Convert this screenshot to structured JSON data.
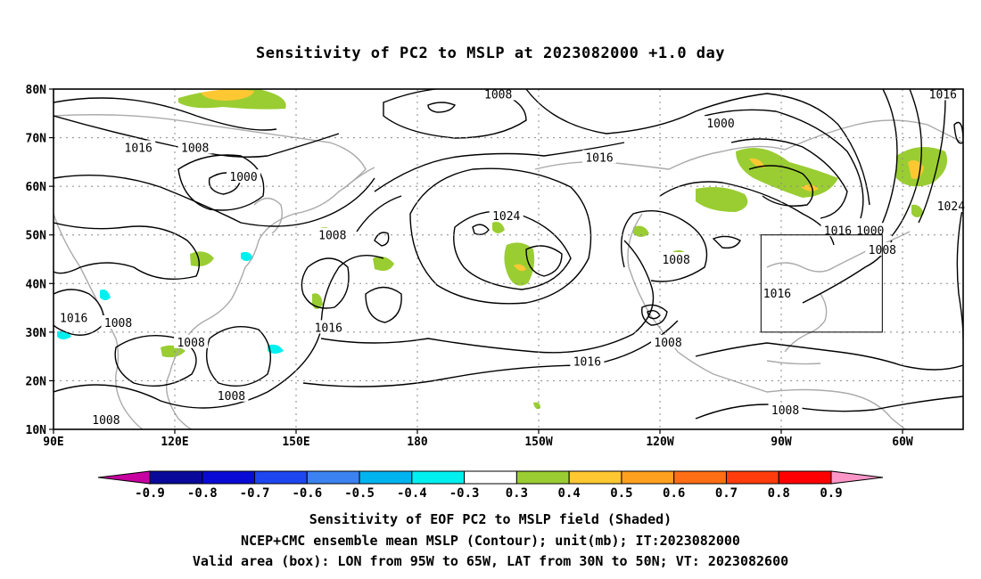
{
  "title": "Sensitivity of PC2 to MSLP at 2023082000 +1.0 day",
  "map": {
    "lat_ticks": [
      {
        "lat": 80,
        "label": "80N"
      },
      {
        "lat": 70,
        "label": "70N"
      },
      {
        "lat": 60,
        "label": "60N"
      },
      {
        "lat": 50,
        "label": "50N"
      },
      {
        "lat": 40,
        "label": "40N"
      },
      {
        "lat": 30,
        "label": "30N"
      },
      {
        "lat": 20,
        "label": "20N"
      },
      {
        "lat": 10,
        "label": "10N"
      }
    ],
    "lon_ticks": [
      {
        "lon": 90,
        "label": "90E"
      },
      {
        "lon": 120,
        "label": "120E"
      },
      {
        "lon": 150,
        "label": "150E"
      },
      {
        "lon": 180,
        "label": "180"
      },
      {
        "lon": 210,
        "label": "150W"
      },
      {
        "lon": 240,
        "label": "120W"
      },
      {
        "lon": 270,
        "label": "90W"
      },
      {
        "lon": 300,
        "label": "60W"
      }
    ],
    "lon_range": [
      90,
      315
    ],
    "lat_range": [
      10,
      80
    ],
    "valid_box": {
      "lon": [
        265,
        295
      ],
      "lat": [
        30,
        50
      ]
    },
    "contour_labels": [
      {
        "text": "1008",
        "lon": 200,
        "lat": 79
      },
      {
        "text": "1016",
        "lon": 310,
        "lat": 79
      },
      {
        "text": "1000",
        "lon": 255,
        "lat": 73
      },
      {
        "text": "1016",
        "lon": 111,
        "lat": 68
      },
      {
        "text": "1008",
        "lon": 125,
        "lat": 68
      },
      {
        "text": "1016",
        "lon": 225,
        "lat": 66
      },
      {
        "text": "1000",
        "lon": 137,
        "lat": 62
      },
      {
        "text": "1024",
        "lon": 202,
        "lat": 54
      },
      {
        "text": "1024",
        "lon": 312,
        "lat": 56
      },
      {
        "text": "1008",
        "lon": 159,
        "lat": 50
      },
      {
        "text": "1016",
        "lon": 284,
        "lat": 51
      },
      {
        "text": "1000",
        "lon": 292,
        "lat": 51
      },
      {
        "text": "1008",
        "lon": 295,
        "lat": 47
      },
      {
        "text": "1008",
        "lon": 244,
        "lat": 45
      },
      {
        "text": "1016",
        "lon": 269,
        "lat": 38
      },
      {
        "text": "1016",
        "lon": 95,
        "lat": 33
      },
      {
        "text": "1008",
        "lon": 106,
        "lat": 32
      },
      {
        "text": "1016",
        "lon": 158,
        "lat": 31
      },
      {
        "text": "1008",
        "lon": 124,
        "lat": 28
      },
      {
        "text": "1008",
        "lon": 242,
        "lat": 28
      },
      {
        "text": "1016",
        "lon": 222,
        "lat": 24
      },
      {
        "text": "1008",
        "lon": 134,
        "lat": 17
      },
      {
        "text": "1008",
        "lon": 271,
        "lat": 14
      },
      {
        "text": "1008",
        "lon": 103,
        "lat": 12
      }
    ]
  },
  "colorbar": {
    "labels": [
      "-0.9",
      "-0.8",
      "-0.7",
      "-0.6",
      "-0.5",
      "-0.4",
      "-0.3",
      "0.3",
      "0.4",
      "0.5",
      "0.6",
      "0.7",
      "0.8",
      "0.9"
    ],
    "colors": [
      "#0a0a9a",
      "#0a0ad6",
      "#1e46f0",
      "#3c82f0",
      "#00b4f0",
      "#00f0f0",
      "#ffffff",
      "#9acd32",
      "#ffc832",
      "#ffa01e",
      "#ff6e14",
      "#ff3c0a",
      "#ff0000"
    ],
    "low_arrow_color": "#c800a0",
    "high_arrow_color": "#ff96c8"
  },
  "captions": {
    "line1": "Sensitivity of EOF PC2 to MSLP field (Shaded)",
    "line2": "NCEP+CMC ensemble mean MSLP (Contour); unit(mb); IT:2023082000",
    "line3": "Valid area (box): LON from 95W to 65W, LAT from 30N to 50N; VT: 2023082600"
  }
}
